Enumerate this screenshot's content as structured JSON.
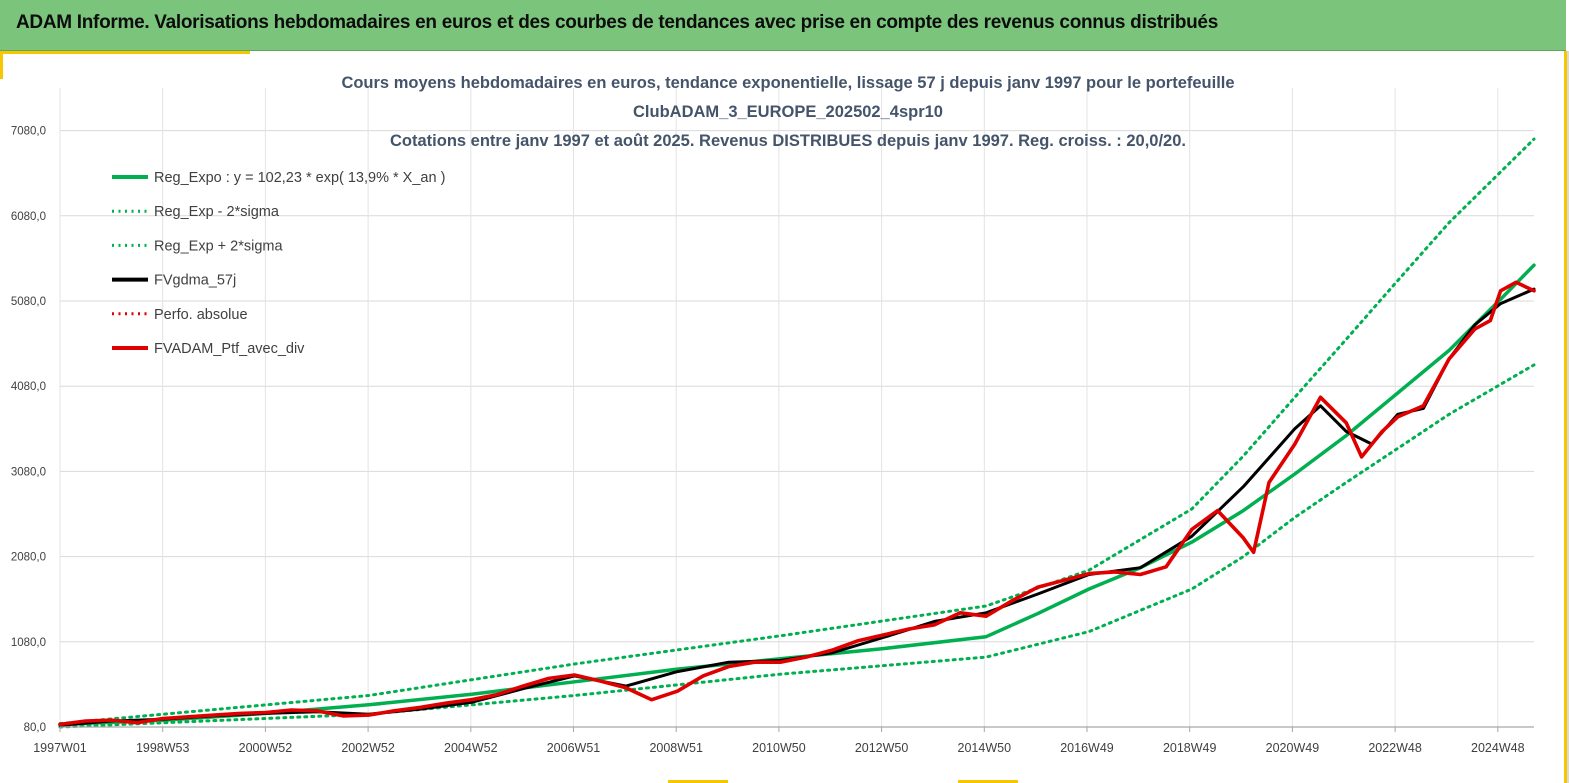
{
  "banner": {
    "text": "ADAM Informe. Valorisations hebdomadaires en euros et des courbes de tendances avec prise en compte des revenus connus distribués"
  },
  "colors": {
    "banner_bg": "#7ac47b",
    "accent": "#f6c700",
    "regression": "#00b050",
    "smoothed": "#000000",
    "portfolio": "#e00000"
  },
  "chart_data": {
    "type": "line",
    "title_lines": [
      "Cours moyens hebdomadaires  en euros, tendance exponentielle, lissage 57 j depuis janv 1997 pour le portefeuille",
      "ClubADAM_3_EUROPE_202502_4spr10",
      "Cotations entre janv 1997 et août 2025. Revenus DISTRIBUES depuis janv 1997. Reg. croiss. : 20,0/20."
    ],
    "x_tick_labels": [
      "1997W01",
      "1998W53",
      "2000W52",
      "2002W52",
      "2004W52",
      "2006W51",
      "2008W51",
      "2010W50",
      "2012W50",
      "2014W50",
      "2016W49",
      "2018W49",
      "2020W49",
      "2022W48",
      "2024W48"
    ],
    "x_range_years": [
      1997.0,
      2025.65
    ],
    "y_tick_labels": [
      "80,0",
      "1080,0",
      "2080,0",
      "3080,0",
      "4080,0",
      "5080,0",
      "6080,0",
      "7080,0"
    ],
    "ylim": [
      80,
      7580
    ],
    "grid": true,
    "legend_position": "top-left",
    "legend": [
      {
        "label": "Reg_Expo : y = 102,23 * exp( 13,9% *  X_an )",
        "color": "#00b050",
        "style": "solid"
      },
      {
        "label": "Reg_Exp - 2*sigma",
        "color": "#00b050",
        "style": "dotted"
      },
      {
        "label": "Reg_Exp + 2*sigma",
        "color": "#00b050",
        "style": "dotted"
      },
      {
        "label": "FVgdma_57j",
        "color": "#000000",
        "style": "solid"
      },
      {
        "label": "Perfo. absolue",
        "color": "#e00000",
        "style": "dotted"
      },
      {
        "label": "FVADAM_Ptf_avec_div",
        "color": "#e00000",
        "style": "solid"
      }
    ],
    "series": [
      {
        "name": "Reg_Expo : y = 102,23 * exp( 13,9% *  X_an )",
        "x": [
          1997.0,
          1999.0,
          2001.0,
          2003.0,
          2005.0,
          2007.0,
          2009.0,
          2011.0,
          2013.0,
          2015.0,
          2016.0,
          2017.0,
          2018.0,
          2019.0,
          2020.0,
          2021.0,
          2022.0,
          2023.0,
          2024.0,
          2025.0,
          2025.65
        ],
        "values": [
          110,
          160,
          240,
          340,
          465,
          610,
          760,
          880,
          1000,
          1140,
          1410,
          1700,
          1950,
          2250,
          2620,
          3050,
          3500,
          4000,
          4500,
          5100,
          5500
        ]
      },
      {
        "name": "Reg_Exp - 2*sigma",
        "x": [
          1997.0,
          2003.0,
          2007.0,
          2011.0,
          2015.0,
          2017.0,
          2019.0,
          2020.0,
          2021.0,
          2022.0,
          2023.0,
          2024.0,
          2025.65
        ],
        "values": [
          80,
          230,
          450,
          700,
          900,
          1200,
          1700,
          2080,
          2540,
          2950,
          3350,
          3750,
          4330
        ]
      },
      {
        "name": "Reg_Exp + 2*sigma",
        "x": [
          1997.0,
          2003.0,
          2007.0,
          2011.0,
          2015.0,
          2017.0,
          2019.0,
          2020.0,
          2021.0,
          2022.0,
          2023.0,
          2024.0,
          2025.65
        ],
        "values": [
          120,
          450,
          820,
          1150,
          1500,
          1920,
          2640,
          3260,
          3950,
          4630,
          5320,
          6000,
          6980
        ]
      },
      {
        "name": "FVgdma_57j",
        "x": [
          1997.0,
          1998.0,
          1999.0,
          2000.0,
          2001.0,
          2002.0,
          2003.0,
          2004.0,
          2005.0,
          2006.0,
          2007.0,
          2008.0,
          2009.0,
          2010.0,
          2011.0,
          2012.0,
          2013.0,
          2014.0,
          2015.0,
          2016.0,
          2017.0,
          2018.0,
          2019.0,
          2020.0,
          2021.0,
          2021.5,
          2022.0,
          2022.5,
          2023.0,
          2023.5,
          2024.0,
          2024.5,
          2025.0,
          2025.65
        ],
        "values": [
          100,
          150,
          170,
          210,
          240,
          260,
          230,
          290,
          370,
          530,
          680,
          560,
          730,
          840,
          860,
          950,
          1130,
          1320,
          1420,
          1640,
          1870,
          1950,
          2320,
          2900,
          3580,
          3850,
          3550,
          3400,
          3750,
          3820,
          4400,
          4800,
          5050,
          5220
        ]
      },
      {
        "name": "FVADAM_Ptf_avec_div",
        "x": [
          1997.0,
          1997.5,
          1998.0,
          1998.5,
          1999.0,
          1999.5,
          2000.0,
          2000.5,
          2001.0,
          2001.5,
          2002.0,
          2002.5,
          2003.0,
          2003.5,
          2004.0,
          2004.5,
          2005.0,
          2005.5,
          2006.0,
          2006.5,
          2007.0,
          2007.5,
          2008.0,
          2008.5,
          2009.0,
          2009.5,
          2010.0,
          2010.5,
          2011.0,
          2011.5,
          2012.0,
          2012.5,
          2013.0,
          2013.5,
          2014.0,
          2014.5,
          2015.0,
          2015.5,
          2016.0,
          2016.5,
          2017.0,
          2017.5,
          2018.0,
          2018.5,
          2019.0,
          2019.5,
          2020.0,
          2020.2,
          2020.5,
          2021.0,
          2021.5,
          2022.0,
          2022.3,
          2022.7,
          2023.0,
          2023.5,
          2024.0,
          2024.5,
          2024.8,
          2025.0,
          2025.3,
          2025.65
        ],
        "values": [
          110,
          150,
          160,
          130,
          180,
          200,
          220,
          240,
          250,
          280,
          270,
          210,
          220,
          270,
          310,
          360,
          400,
          460,
          560,
          650,
          690,
          620,
          540,
          400,
          500,
          680,
          790,
          840,
          840,
          900,
          980,
          1090,
          1160,
          1230,
          1280,
          1420,
          1380,
          1560,
          1720,
          1800,
          1880,
          1900,
          1870,
          1960,
          2400,
          2620,
          2300,
          2130,
          2950,
          3400,
          3950,
          3650,
          3250,
          3550,
          3720,
          3850,
          4400,
          4750,
          4850,
          5200,
          5300,
          5200
        ]
      }
    ]
  }
}
